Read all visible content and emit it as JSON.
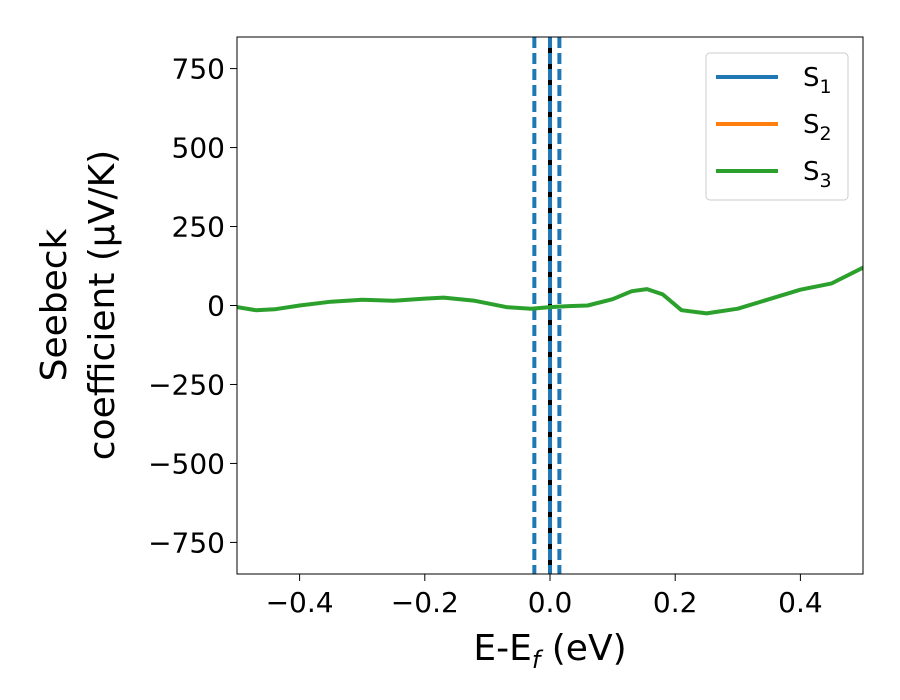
{
  "chart_data": {
    "type": "line",
    "xlabel": "E-E",
    "xlabel_sub": "f",
    "xlabel_unit": " (eV)",
    "ylabel_line1": "Seebeck",
    "ylabel_line2": "coefficient  (μV/K)",
    "xlim": [
      -0.5,
      0.5
    ],
    "ylim": [
      -850,
      850
    ],
    "xticks": [
      -0.4,
      -0.2,
      0.0,
      0.2,
      0.4
    ],
    "xtick_labels": [
      "−0.4",
      "−0.2",
      "0.0",
      "0.2",
      "0.4"
    ],
    "yticks": [
      750,
      500,
      250,
      0,
      -250,
      -500,
      -750
    ],
    "ytick_labels": [
      "750",
      "500",
      "250",
      "0",
      "−250",
      "−500",
      "−750"
    ],
    "grid": false,
    "legend_position": "top-right",
    "series": [
      {
        "name": "S",
        "sub": "1",
        "color": "#1f77b4",
        "x": [],
        "y": []
      },
      {
        "name": "S",
        "sub": "2",
        "color": "#ff7f0e",
        "x": [],
        "y": []
      },
      {
        "name": "S",
        "sub": "3",
        "color": "#2ca02c",
        "x": [
          -0.5,
          -0.47,
          -0.44,
          -0.4,
          -0.35,
          -0.3,
          -0.25,
          -0.2,
          -0.17,
          -0.12,
          -0.07,
          -0.03,
          0.0,
          0.03,
          0.06,
          0.1,
          0.13,
          0.155,
          0.18,
          0.21,
          0.25,
          0.3,
          0.35,
          0.4,
          0.45,
          0.5
        ],
        "y": [
          -5,
          -15,
          -12,
          0,
          12,
          18,
          15,
          22,
          25,
          15,
          -5,
          -10,
          -5,
          -2,
          0,
          20,
          45,
          52,
          35,
          -15,
          -25,
          -10,
          20,
          50,
          70,
          120
        ]
      }
    ],
    "vlines": [
      {
        "x": 0.0,
        "color": "#000000",
        "style": "solid"
      },
      {
        "x": -0.025,
        "color": "#1f77b4",
        "style": "dashed"
      },
      {
        "x": 0.0,
        "color": "#1f77b4",
        "style": "dashed"
      },
      {
        "x": 0.015,
        "color": "#1f77b4",
        "style": "dashed"
      }
    ]
  }
}
